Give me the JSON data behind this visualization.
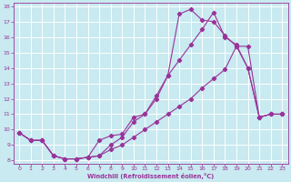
{
  "xlabel": "Windchill (Refroidissement éolien,°C)",
  "bg_color": "#c8eaf0",
  "grid_color": "#ffffff",
  "line_color": "#993399",
  "xlim": [
    -0.5,
    23.5
  ],
  "ylim": [
    7.8,
    18.2
  ],
  "xticks": [
    0,
    1,
    2,
    3,
    4,
    5,
    6,
    7,
    8,
    9,
    10,
    11,
    12,
    13,
    14,
    15,
    16,
    17,
    18,
    19,
    20,
    21,
    22,
    23
  ],
  "yticks": [
    8,
    9,
    10,
    11,
    12,
    13,
    14,
    15,
    16,
    17,
    18
  ],
  "line1_x": [
    0,
    1,
    2,
    3,
    4,
    5,
    6,
    7,
    8,
    9,
    10,
    11,
    12,
    13,
    14,
    15,
    16,
    17,
    18,
    19,
    20,
    21,
    22,
    23
  ],
  "line1_y": [
    9.8,
    9.3,
    9.3,
    8.3,
    8.1,
    8.1,
    8.2,
    9.3,
    9.6,
    9.7,
    10.8,
    11.0,
    12.2,
    13.5,
    17.5,
    17.8,
    17.1,
    17.0,
    16.1,
    15.4,
    14.0,
    10.8,
    11.0,
    11.0
  ],
  "line2_x": [
    0,
    1,
    2,
    3,
    4,
    5,
    6,
    7,
    8,
    9,
    10,
    11,
    12,
    13,
    14,
    15,
    16,
    17,
    18,
    19,
    20,
    21,
    22,
    23
  ],
  "line2_y": [
    9.8,
    9.3,
    9.3,
    8.3,
    8.1,
    8.1,
    8.2,
    8.3,
    9.0,
    9.5,
    10.5,
    11.0,
    12.0,
    13.5,
    14.5,
    15.5,
    16.5,
    17.6,
    16.0,
    15.5,
    14.0,
    10.8,
    11.0,
    11.0
  ],
  "line3_x": [
    0,
    1,
    2,
    3,
    4,
    5,
    6,
    7,
    8,
    9,
    10,
    11,
    12,
    13,
    14,
    15,
    16,
    17,
    18,
    19,
    20,
    21,
    22,
    23
  ],
  "line3_y": [
    9.8,
    9.3,
    9.3,
    8.3,
    8.1,
    8.1,
    8.2,
    8.3,
    8.7,
    9.0,
    9.5,
    10.0,
    10.5,
    11.0,
    11.5,
    12.0,
    12.7,
    13.3,
    13.9,
    15.4,
    15.4,
    10.8,
    11.0,
    11.0
  ]
}
